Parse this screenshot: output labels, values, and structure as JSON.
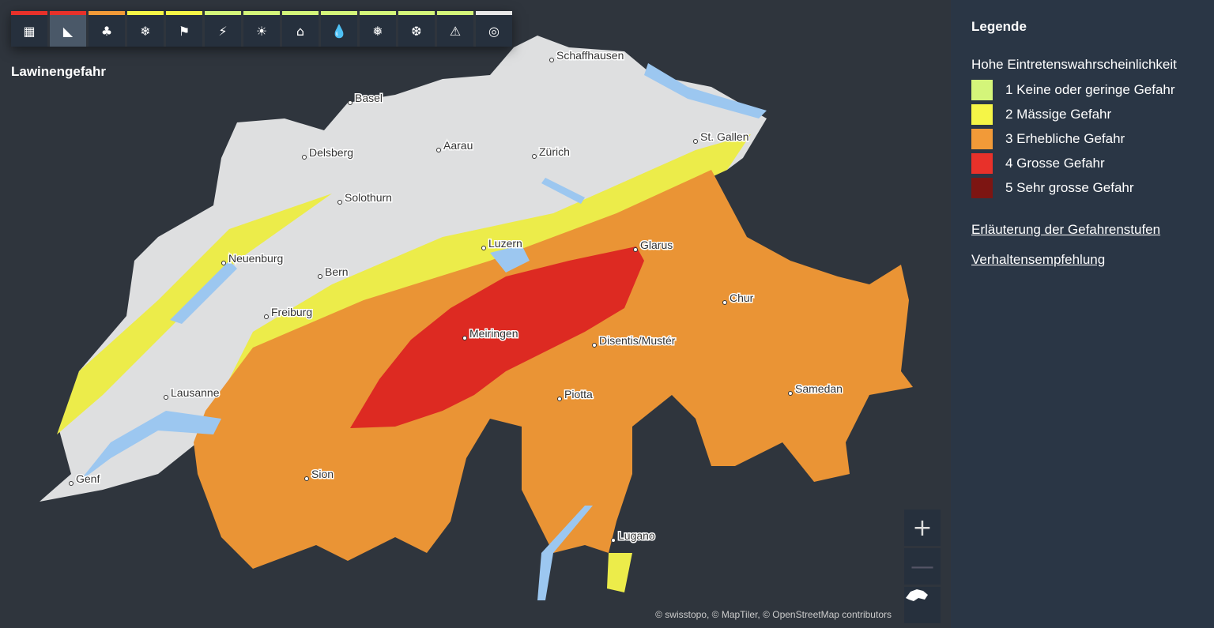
{
  "toolbar": {
    "items": [
      {
        "name": "overview",
        "icon": "grid-icon",
        "glyph": "▦",
        "color": "#e8312a"
      },
      {
        "name": "avalanche",
        "icon": "avalanche-icon",
        "glyph": "◣",
        "color": "#e8312a",
        "active": true
      },
      {
        "name": "forest-fire",
        "icon": "forest-fire-icon",
        "glyph": "♣",
        "color": "#f29a38"
      },
      {
        "name": "frost",
        "icon": "frost-thermometer-icon",
        "glyph": "❄",
        "color": "#f5f547"
      },
      {
        "name": "wind",
        "icon": "windsock-icon",
        "glyph": "⚑",
        "color": "#f5f547"
      },
      {
        "name": "thunderstorm",
        "icon": "lightning-icon",
        "glyph": "⚡",
        "color": "#d4f57a"
      },
      {
        "name": "heat",
        "icon": "heat-thermometer-icon",
        "glyph": "☀",
        "color": "#d4f57a"
      },
      {
        "name": "flood",
        "icon": "flood-house-icon",
        "glyph": "⌂",
        "color": "#d4f57a"
      },
      {
        "name": "rain",
        "icon": "rain-drops-icon",
        "glyph": "💧",
        "color": "#d4f57a"
      },
      {
        "name": "snow",
        "icon": "snowflakes-icon",
        "glyph": "❅",
        "color": "#d4f57a"
      },
      {
        "name": "slippery-roads",
        "icon": "road-snow-icon",
        "glyph": "❆",
        "color": "#d4f57a"
      },
      {
        "name": "landslide",
        "icon": "landslide-icon",
        "glyph": "⚠",
        "color": "#d4f57a"
      },
      {
        "name": "earthquake",
        "icon": "earthquake-icon",
        "glyph": "◎",
        "color": "#e8e8e8"
      }
    ]
  },
  "map": {
    "title": "Lawinengefahr",
    "attribution": "© swisstopo, © MapTiler, © OpenStreetMap contributors",
    "cities": [
      "Schaffhausen",
      "Basel",
      "Delsberg",
      "Aarau",
      "Zürich",
      "St. Gallen",
      "Solothurn",
      "Luzern",
      "Glarus",
      "Neuenburg",
      "Bern",
      "Freiburg",
      "Chur",
      "Meiringen",
      "Disentis/Mustér",
      "Lausanne",
      "Piotta",
      "Samedan",
      "Genf",
      "Sion",
      "Lugano"
    ],
    "zoom_in": "+",
    "zoom_out": "—"
  },
  "legend": {
    "title": "Legende",
    "subtitle": "Hohe Eintretenswahrscheinlichkeit",
    "levels": [
      {
        "label": "1  Keine oder geringe Gefahr",
        "color": "#d4f57a"
      },
      {
        "label": "2  Mässige Gefahr",
        "color": "#f5f547"
      },
      {
        "label": "3  Erhebliche Gefahr",
        "color": "#f29a38"
      },
      {
        "label": "4  Grosse Gefahr",
        "color": "#e8312a"
      },
      {
        "label": "5  Sehr grosse Gefahr",
        "color": "#7d1512"
      }
    ],
    "links": [
      "Erläuterung der Gefahrenstufen",
      "Verhaltensempfehlung"
    ]
  }
}
